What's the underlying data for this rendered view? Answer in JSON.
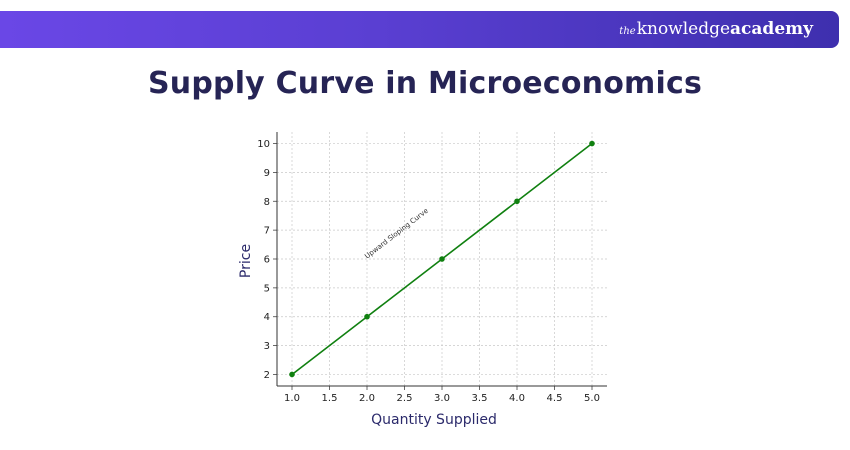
{
  "banner": {
    "brand_prefix": "the",
    "brand_main": "knowledge",
    "brand_suffix": "academy"
  },
  "page_title": "Supply Curve in Microeconomics",
  "chart_data": {
    "type": "line",
    "title": "",
    "xlabel": "Quantity Supplied",
    "ylabel": "Price",
    "x": [
      1.0,
      2.0,
      3.0,
      4.0,
      5.0
    ],
    "series": [
      {
        "values": [
          2,
          4,
          6,
          8,
          10
        ],
        "color": "#108010",
        "markers": true
      }
    ],
    "xlim": [
      0.8,
      5.2
    ],
    "ylim": [
      1.6,
      10.4
    ],
    "xticks": [
      "1.0",
      "1.5",
      "2.0",
      "2.5",
      "3.0",
      "3.5",
      "4.0",
      "4.5",
      "5.0"
    ],
    "yticks": [
      "2",
      "3",
      "4",
      "5",
      "6",
      "7",
      "8",
      "9",
      "10"
    ],
    "grid": true,
    "annotations": [
      {
        "text": "Upward Sloping Curve",
        "x": 2.0,
        "y": 6.0
      }
    ]
  }
}
